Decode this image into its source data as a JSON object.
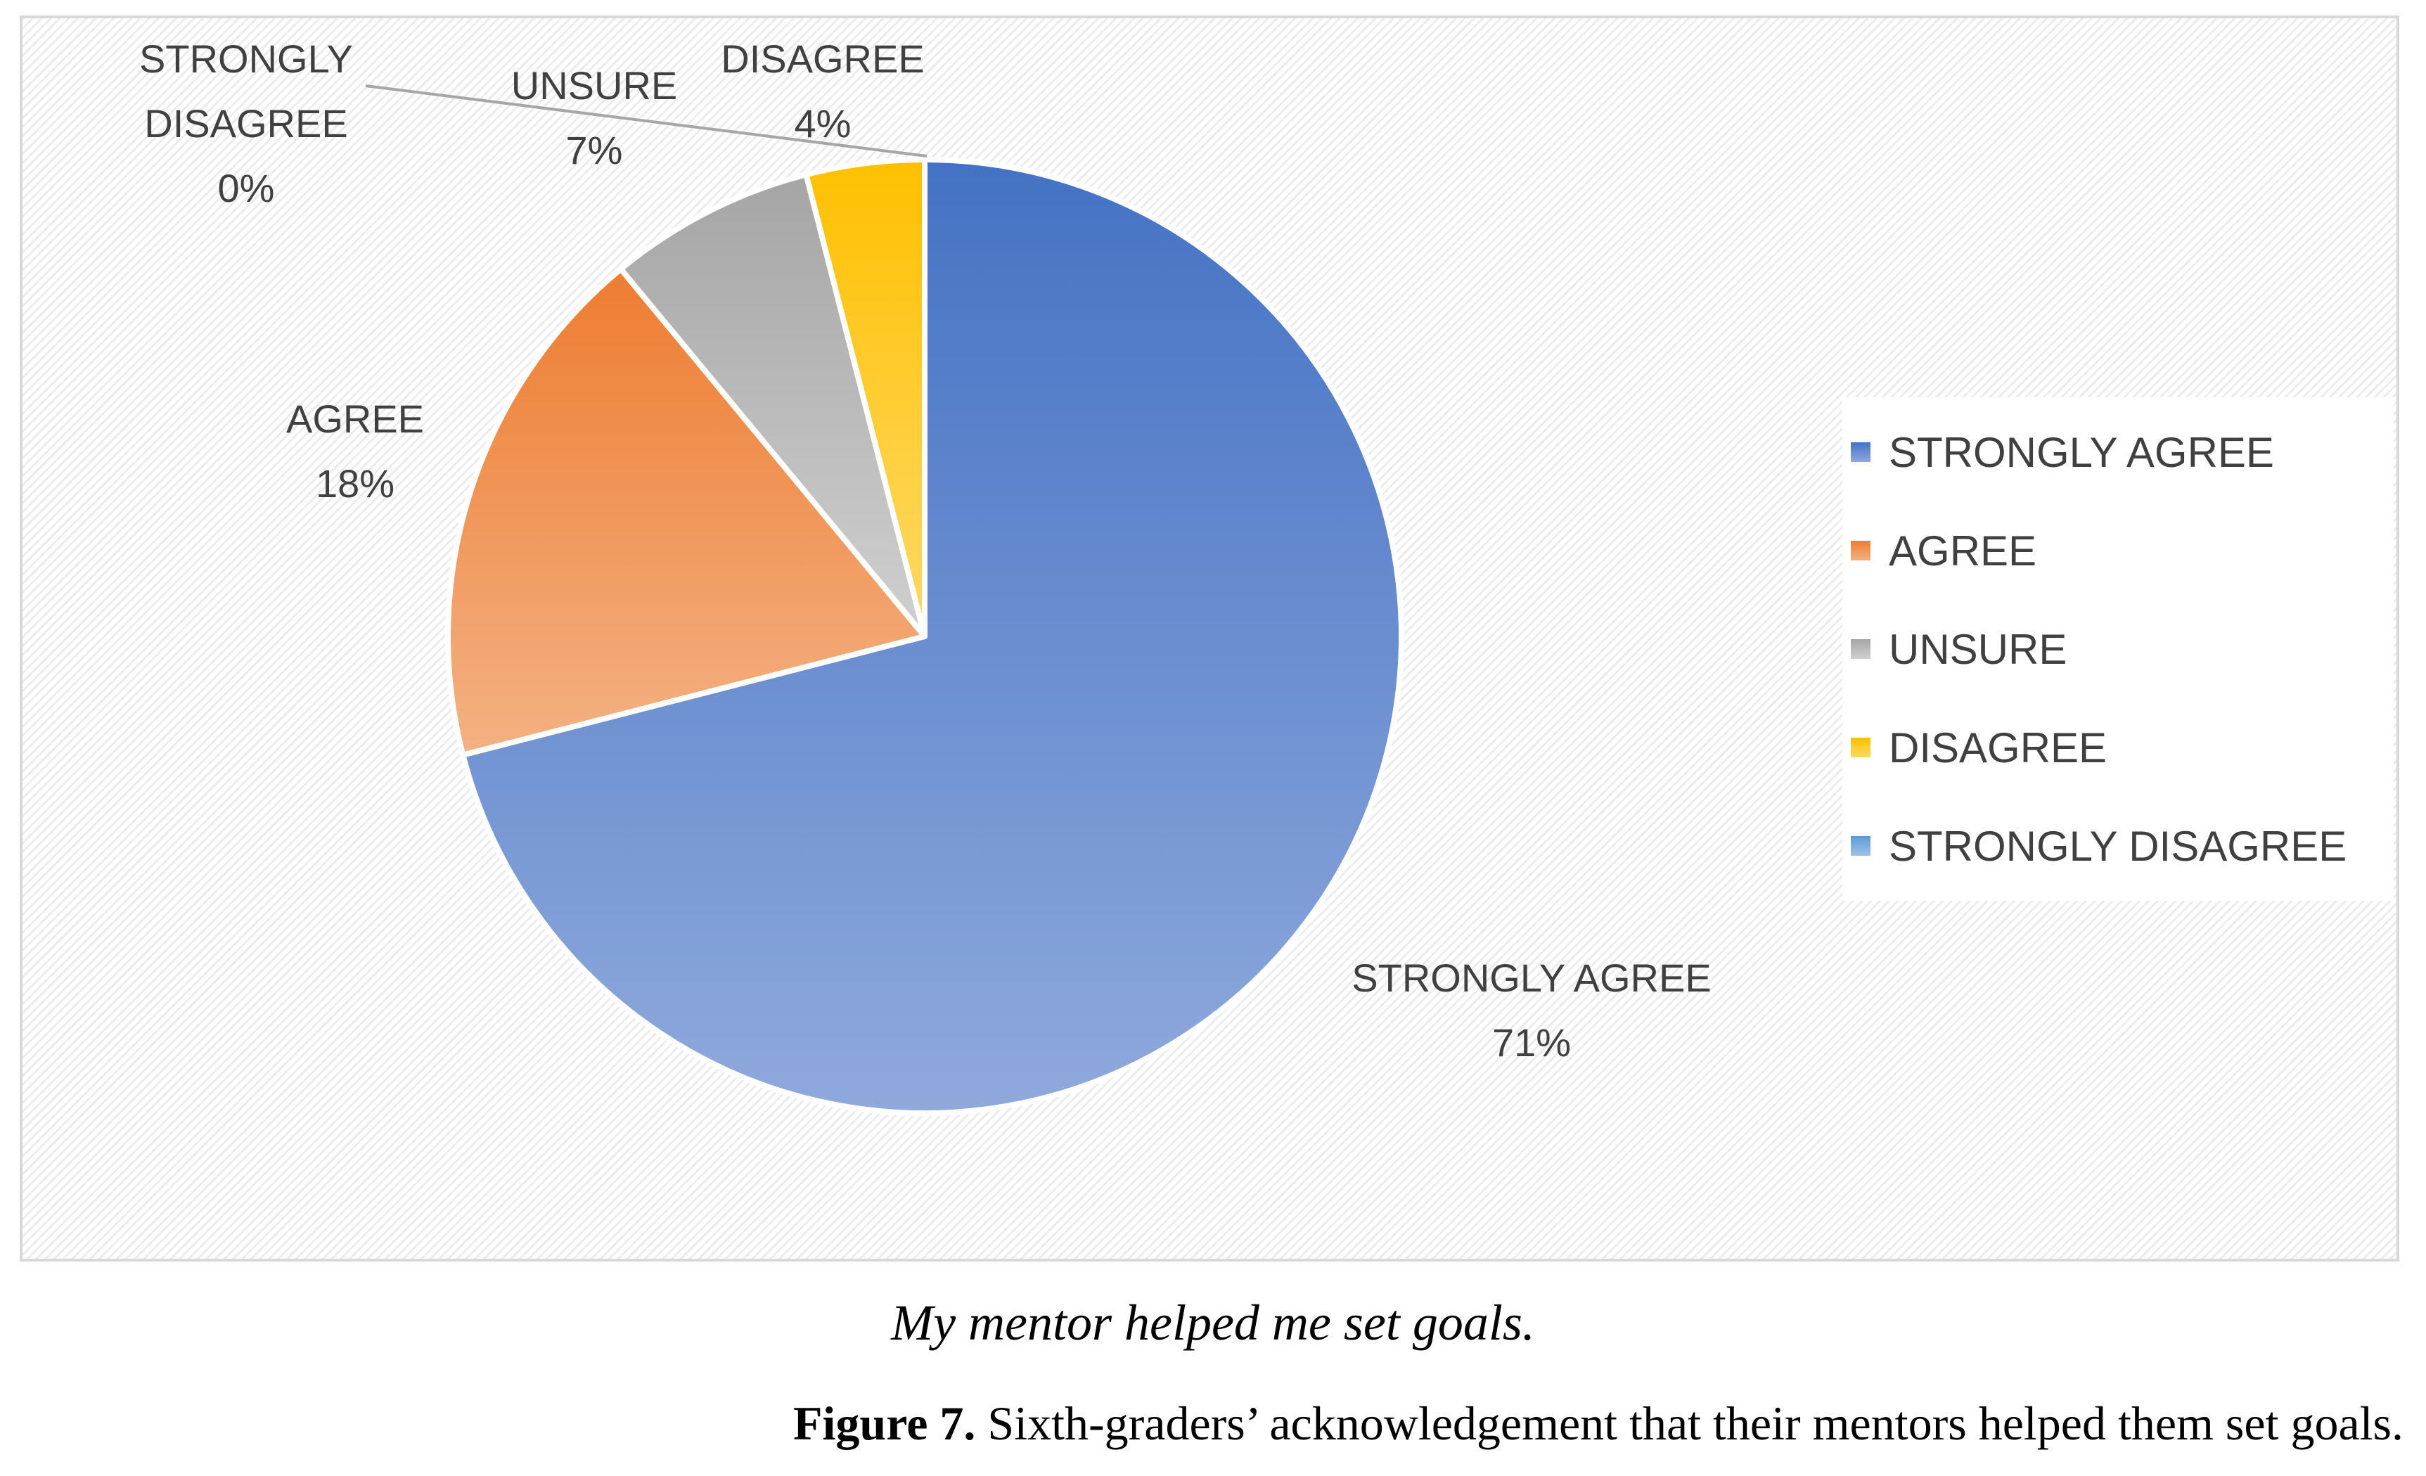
{
  "chart_data": {
    "type": "pie",
    "title": "",
    "categories": [
      "STRONGLY AGREE",
      "AGREE",
      "UNSURE",
      "DISAGREE",
      "STRONGLY DISAGREE"
    ],
    "values": [
      71,
      18,
      7,
      4,
      0
    ],
    "labels": [
      "71%",
      "18%",
      "7%",
      "4%",
      "0%"
    ],
    "colors": [
      "#4472c4",
      "#ed7d31",
      "#a5a5a5",
      "#ffc000",
      "#5b9bd5"
    ],
    "legend_position": "right",
    "start_angle_deg": 0,
    "direction": "clockwise"
  },
  "legend": {
    "items": [
      {
        "label": "STRONGLY AGREE",
        "color": "#4472c4"
      },
      {
        "label": "AGREE",
        "color": "#ed7d31"
      },
      {
        "label": "UNSURE",
        "color": "#a5a5a5"
      },
      {
        "label": "DISAGREE",
        "color": "#ffc000"
      },
      {
        "label": "STRONGLY DISAGREE",
        "color": "#5b9bd5"
      }
    ]
  },
  "caption": {
    "chart_subtitle": "My mentor helped me set goals.",
    "figure_label": "Figure 7.",
    "figure_text": " Sixth-graders’ acknowledgement that their mentors helped them set goals."
  }
}
